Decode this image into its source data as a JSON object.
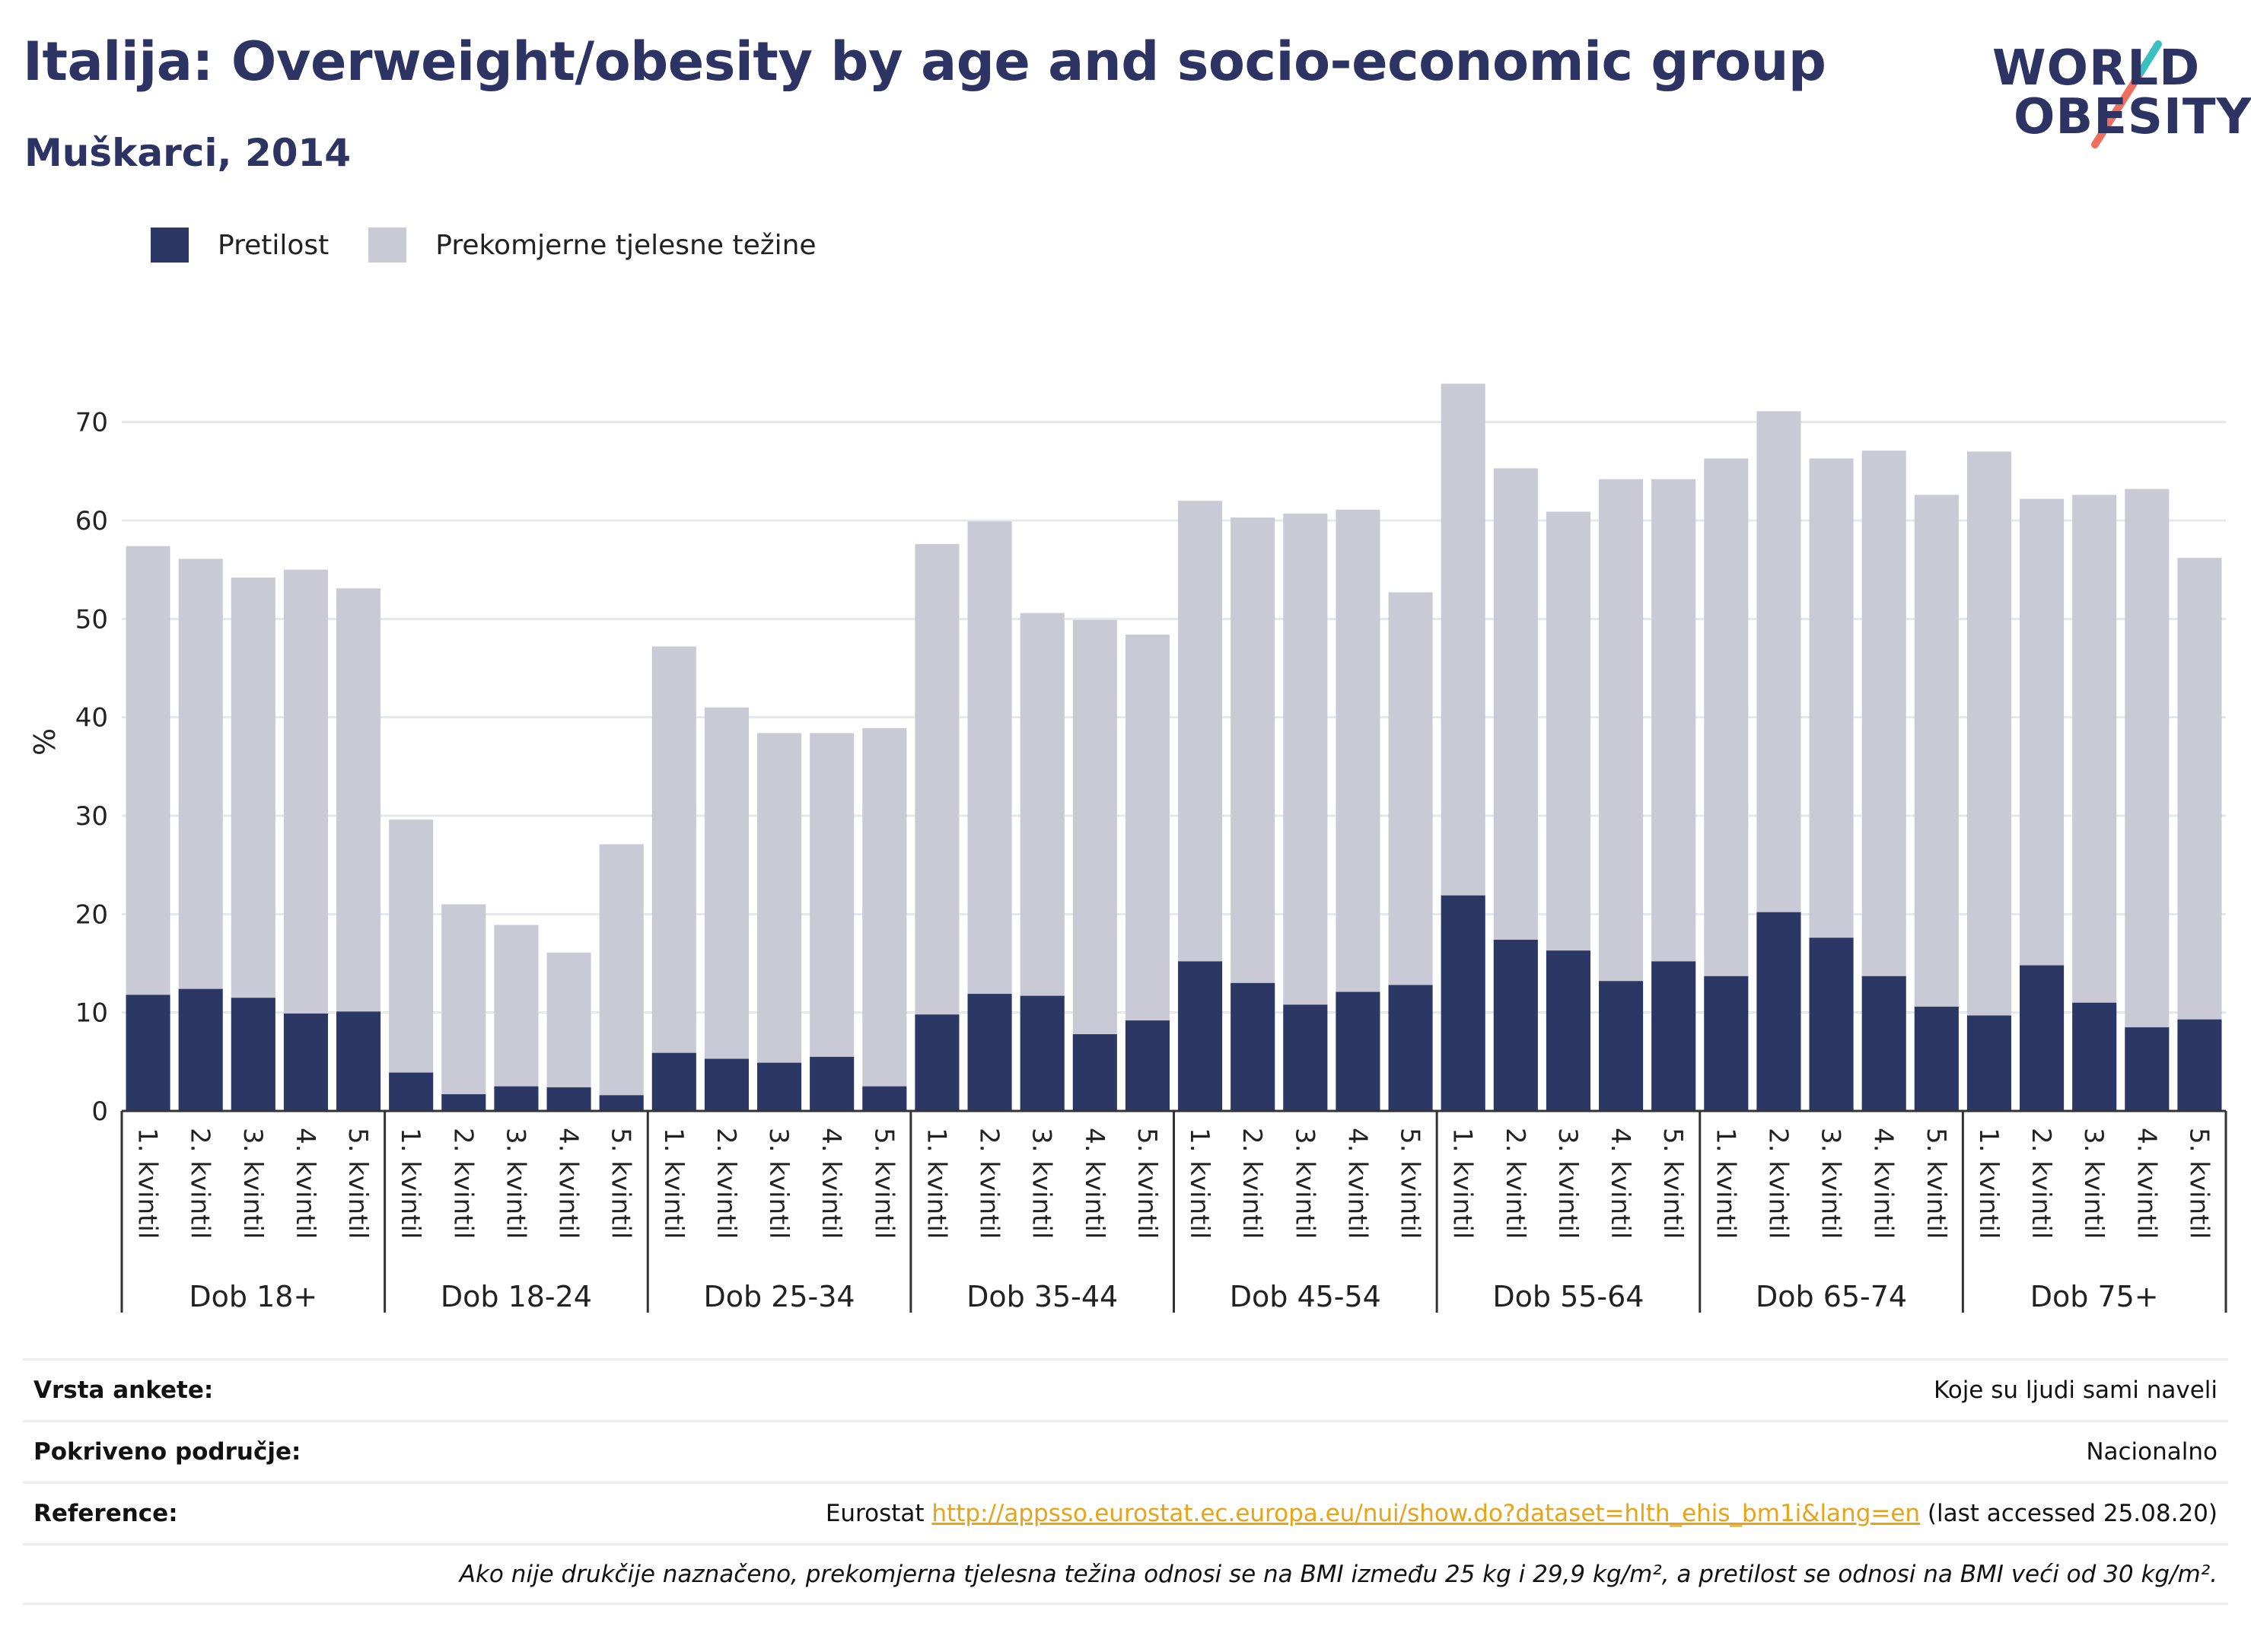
{
  "header": {
    "title": "Italija: Overweight/obesity by age and socio-economic group",
    "subtitle": "Muškarci, 2014"
  },
  "logo": {
    "line1": "WORLD",
    "line2": "OBESITY"
  },
  "colors": {
    "obesity": "#2b3765",
    "overweight": "#c9cad6",
    "grid": "#e6e8ee",
    "axis": "#333333",
    "accent_teal": "#3bbfbf",
    "accent_coral": "#ef6f5e"
  },
  "legend": [
    {
      "label": "Pretilost",
      "color": "#2b3765"
    },
    {
      "label": "Prekomjerne tjelesne težine",
      "color": "#c9cad6"
    }
  ],
  "chart_data": {
    "type": "bar",
    "stacked": false,
    "overlay": true,
    "ylabel": "%",
    "ylim": [
      0,
      75
    ],
    "yticks": [
      0,
      10,
      20,
      30,
      40,
      50,
      60,
      70
    ],
    "grid": true,
    "legend_position": "top-left",
    "categories": [
      "1. kvintil",
      "2. kvintil",
      "3. kvintil",
      "4. kvintil",
      "5. kvintil"
    ],
    "groups": [
      {
        "label": "Dob 18+",
        "overweight": [
          57.4,
          56.1,
          54.2,
          55.0,
          53.1
        ],
        "obesity": [
          11.8,
          12.4,
          11.5,
          9.9,
          10.1
        ]
      },
      {
        "label": "Dob 18-24",
        "overweight": [
          29.6,
          21.0,
          18.9,
          16.1,
          27.1
        ],
        "obesity": [
          3.9,
          1.7,
          2.5,
          2.4,
          1.6
        ]
      },
      {
        "label": "Dob 25-34",
        "overweight": [
          47.2,
          41.0,
          38.4,
          38.4,
          38.9
        ],
        "obesity": [
          5.9,
          5.3,
          4.9,
          5.5,
          2.5
        ]
      },
      {
        "label": "Dob 35-44",
        "overweight": [
          57.6,
          59.9,
          50.6,
          49.9,
          48.4
        ],
        "obesity": [
          9.8,
          11.9,
          11.7,
          7.8,
          9.2
        ]
      },
      {
        "label": "Dob 45-54",
        "overweight": [
          62.0,
          60.3,
          60.7,
          61.1,
          52.7
        ],
        "obesity": [
          15.2,
          13.0,
          10.8,
          12.1,
          12.8
        ]
      },
      {
        "label": "Dob 55-64",
        "overweight": [
          73.9,
          65.3,
          60.9,
          64.2,
          64.2
        ],
        "obesity": [
          21.9,
          17.4,
          16.3,
          13.2,
          15.2
        ]
      },
      {
        "label": "Dob 65-74",
        "overweight": [
          66.3,
          71.1,
          66.3,
          67.1,
          62.6
        ],
        "obesity": [
          13.7,
          20.2,
          17.6,
          13.7,
          10.6
        ]
      },
      {
        "label": "Dob 75+",
        "overweight": [
          67.0,
          62.2,
          62.6,
          63.2,
          56.2
        ],
        "obesity": [
          9.7,
          14.8,
          11.0,
          8.5,
          9.3
        ]
      }
    ]
  },
  "info": {
    "survey_type_label": "Vrsta ankete:",
    "survey_type_value": "Koje su ljudi sami naveli",
    "coverage_label": "Pokriveno područje:",
    "coverage_value": "Nacionalno",
    "reference_label": "Reference:",
    "reference_prefix": "Eurostat ",
    "reference_link": "http://appsso.eurostat.ec.europa.eu/nui/show.do?dataset=hlth_ehis_bm1i&lang=en",
    "reference_suffix": " (last accessed 25.08.20)",
    "note": "Ako nije drukčije naznačeno, prekomjerna tjelesna težina odnosi se na BMI između 25 kg i 29,9 kg/m², a pretilost se odnosi na BMI veći od 30 kg/m²."
  }
}
